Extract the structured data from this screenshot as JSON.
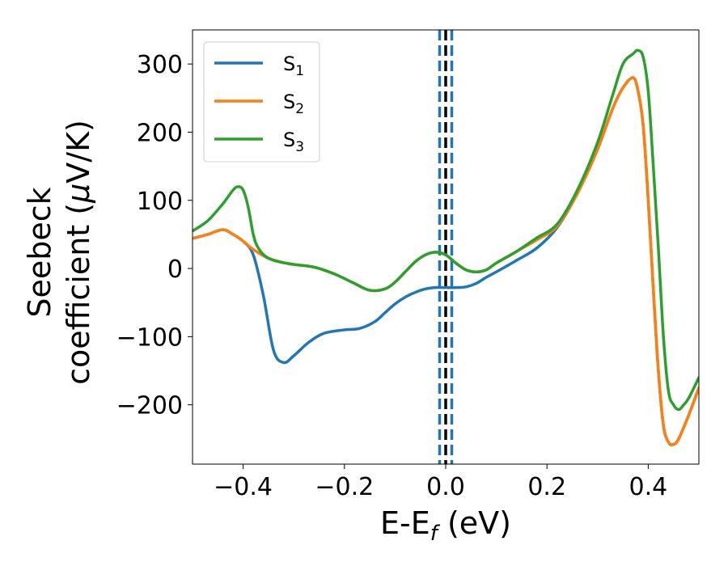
{
  "chart_data": {
    "type": "line",
    "xlabel": {
      "main": "E-E",
      "sub": "f",
      "tail": " (eV)"
    },
    "ylabel": {
      "line1": "Seebeck",
      "line2_prefix": "coefficient  (",
      "mu": "μ",
      "line2_suffix": "V/K)"
    },
    "xlim": [
      -0.5,
      0.5
    ],
    "ylim": [
      -287,
      350
    ],
    "xticks": [
      -0.4,
      -0.2,
      0.0,
      0.2,
      0.4
    ],
    "xtick_labels": [
      "−0.4",
      "−0.2",
      "0.0",
      "0.2",
      "0.4"
    ],
    "yticks": [
      -200,
      -100,
      0,
      100,
      200,
      300
    ],
    "ytick_labels": [
      "−200",
      "−100",
      "0",
      "100",
      "200",
      "300"
    ],
    "grid": false,
    "legend_position": "top-left",
    "vlines": [
      {
        "x": -0.012,
        "style": "dashed",
        "color": "#1f77b4"
      },
      {
        "x": 0.012,
        "style": "dashed",
        "color": "#1f77b4"
      },
      {
        "x": 0.0,
        "style": "dashed",
        "color": "#000000"
      }
    ],
    "series": [
      {
        "name": "S",
        "sub": "1",
        "color": "#1f77b4",
        "x": [
          -0.5,
          -0.47,
          -0.44,
          -0.42,
          -0.4,
          -0.38,
          -0.36,
          -0.34,
          -0.32,
          -0.3,
          -0.27,
          -0.24,
          -0.2,
          -0.17,
          -0.14,
          -0.12,
          -0.1,
          -0.08,
          -0.06,
          -0.04,
          -0.02,
          0.0,
          0.02,
          0.04,
          0.06,
          0.08,
          0.1,
          0.14,
          0.18,
          0.22,
          0.26,
          0.3,
          0.33,
          0.35,
          0.37,
          0.38,
          0.39,
          0.4,
          0.41,
          0.42,
          0.43,
          0.44,
          0.45,
          0.46,
          0.48,
          0.5
        ],
        "y": [
          44,
          50,
          57,
          50,
          40,
          20,
          -40,
          -120,
          -138,
          -128,
          -108,
          -95,
          -90,
          -88,
          -78,
          -65,
          -52,
          -42,
          -35,
          -30,
          -28,
          -28,
          -28,
          -27,
          -22,
          -13,
          -5,
          12,
          30,
          60,
          110,
          175,
          235,
          265,
          280,
          260,
          210,
          100,
          -30,
          -150,
          -230,
          -255,
          -258,
          -250,
          -215,
          -175
        ]
      },
      {
        "name": "S",
        "sub": "2",
        "color": "#ff7f0e",
        "x": [
          -0.5,
          -0.47,
          -0.44,
          -0.42,
          -0.4,
          -0.38,
          -0.35,
          -0.31,
          -0.26,
          -0.22,
          -0.18,
          -0.15,
          -0.12,
          -0.1,
          -0.08,
          -0.06,
          -0.04,
          -0.02,
          0.0,
          0.02,
          0.04,
          0.06,
          0.08,
          0.1,
          0.14,
          0.18,
          0.22,
          0.26,
          0.3,
          0.33,
          0.35,
          0.37,
          0.38,
          0.39,
          0.4,
          0.41,
          0.42,
          0.43,
          0.44,
          0.45,
          0.46,
          0.48,
          0.5
        ],
        "y": [
          44,
          50,
          57,
          50,
          40,
          28,
          15,
          7,
          2,
          -8,
          -22,
          -32,
          -30,
          -20,
          -5,
          10,
          20,
          24,
          20,
          8,
          -2,
          -5,
          -2,
          8,
          25,
          42,
          62,
          110,
          175,
          235,
          265,
          280,
          260,
          210,
          100,
          -30,
          -150,
          -230,
          -255,
          -258,
          -250,
          -215,
          -175
        ]
      },
      {
        "name": "S",
        "sub": "3",
        "color": "#2ca02c",
        "x": [
          -0.5,
          -0.47,
          -0.44,
          -0.42,
          -0.41,
          -0.4,
          -0.39,
          -0.38,
          -0.37,
          -0.35,
          -0.31,
          -0.26,
          -0.22,
          -0.18,
          -0.15,
          -0.12,
          -0.1,
          -0.08,
          -0.06,
          -0.04,
          -0.02,
          0.0,
          0.02,
          0.04,
          0.06,
          0.08,
          0.1,
          0.14,
          0.18,
          0.22,
          0.26,
          0.3,
          0.33,
          0.35,
          0.37,
          0.38,
          0.39,
          0.4,
          0.41,
          0.42,
          0.43,
          0.44,
          0.45,
          0.46,
          0.47,
          0.48,
          0.5
        ],
        "y": [
          55,
          70,
          95,
          115,
          120,
          115,
          90,
          50,
          30,
          15,
          7,
          2,
          -8,
          -22,
          -32,
          -30,
          -20,
          -5,
          10,
          20,
          24,
          20,
          8,
          -2,
          -5,
          -2,
          8,
          25,
          45,
          65,
          115,
          185,
          255,
          300,
          315,
          320,
          310,
          260,
          150,
          30,
          -100,
          -180,
          -200,
          -207,
          -200,
          -190,
          -160
        ]
      }
    ]
  }
}
